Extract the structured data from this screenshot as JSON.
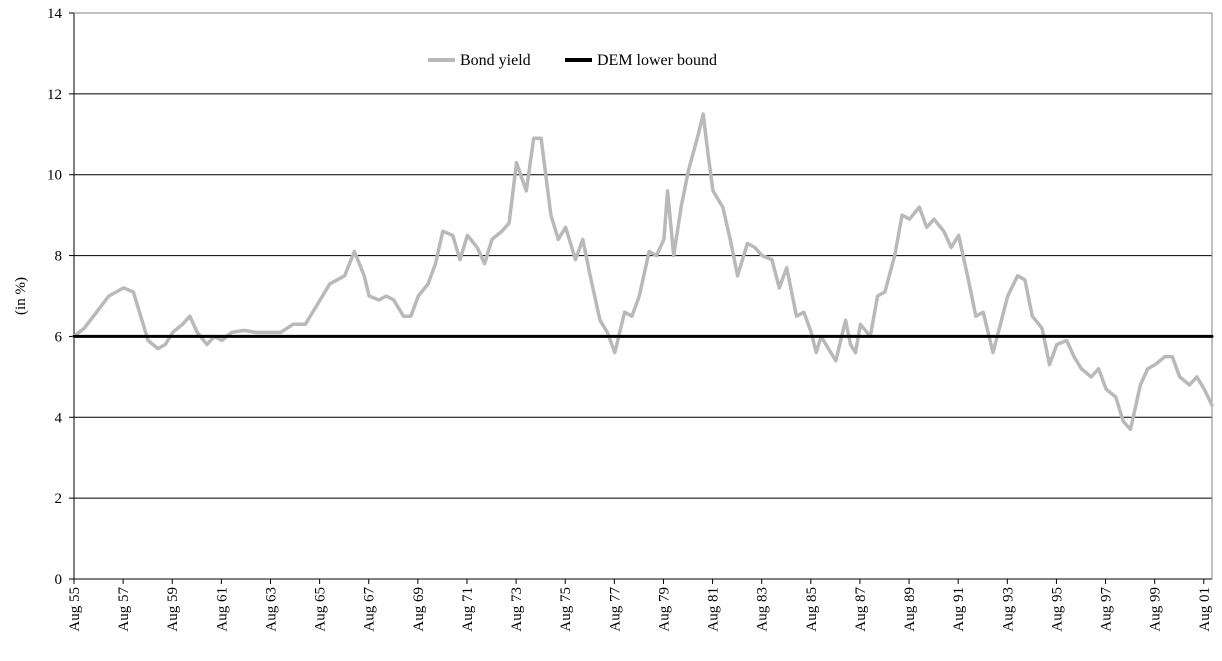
{
  "chart_data": {
    "type": "line",
    "ylabel": "(in %)",
    "xlabel": "",
    "ylim": [
      0,
      14
    ],
    "y_ticks": [
      "0",
      "2",
      "4",
      "6",
      "8",
      "10",
      "12",
      "14"
    ],
    "x_range_years": [
      1955.583,
      2001.917
    ],
    "x_tick_labels": [
      "Aug 55",
      "Aug 57",
      "Aug 59",
      "Aug 61",
      "Aug 63",
      "Aug 65",
      "Aug 67",
      "Aug 69",
      "Aug 71",
      "Aug 73",
      "Aug 75",
      "Aug 77",
      "Aug 79",
      "Aug 81",
      "Aug 83",
      "Aug 85",
      "Aug 87",
      "Aug 89",
      "Aug 91",
      "Aug 93",
      "Aug 95",
      "Aug 97",
      "Aug 99",
      "Aug 01"
    ],
    "grid": true,
    "legend_position": "top-center",
    "series": [
      {
        "name": "Bond yield",
        "color": "#b9b9b9",
        "x": [
          1955.58,
          1956.0,
          1956.5,
          1957.0,
          1957.3,
          1957.6,
          1958.0,
          1958.3,
          1958.6,
          1959.0,
          1959.3,
          1959.6,
          1960.0,
          1960.3,
          1960.6,
          1961.0,
          1961.3,
          1961.6,
          1962.0,
          1962.5,
          1963.0,
          1963.5,
          1964.0,
          1964.5,
          1965.0,
          1965.5,
          1966.0,
          1966.6,
          1967.0,
          1967.4,
          1967.6,
          1968.0,
          1968.3,
          1968.6,
          1969.0,
          1969.3,
          1969.6,
          1970.0,
          1970.3,
          1970.6,
          1971.0,
          1971.3,
          1971.6,
          1972.0,
          1972.3,
          1972.6,
          1973.0,
          1973.3,
          1973.6,
          1974.0,
          1974.3,
          1974.6,
          1975.0,
          1975.3,
          1975.6,
          1976.0,
          1976.3,
          1976.6,
          1977.0,
          1977.3,
          1977.6,
          1978.0,
          1978.3,
          1978.6,
          1979.0,
          1979.3,
          1979.6,
          1979.75,
          1980.0,
          1980.3,
          1980.6,
          1981.0,
          1981.2,
          1981.4,
          1981.6,
          1982.0,
          1982.3,
          1982.6,
          1983.0,
          1983.3,
          1983.6,
          1984.0,
          1984.3,
          1984.6,
          1985.0,
          1985.3,
          1985.6,
          1985.8,
          1986.0,
          1986.3,
          1986.6,
          1987.0,
          1987.2,
          1987.4,
          1987.6,
          1988.0,
          1988.3,
          1988.6,
          1989.0,
          1989.3,
          1989.6,
          1990.0,
          1990.3,
          1990.6,
          1991.0,
          1991.3,
          1991.6,
          1992.0,
          1992.3,
          1992.6,
          1993.0,
          1993.3,
          1993.6,
          1994.0,
          1994.3,
          1994.6,
          1995.0,
          1995.3,
          1995.6,
          1996.0,
          1996.3,
          1996.6,
          1997.0,
          1997.3,
          1997.6,
          1998.0,
          1998.3,
          1998.6,
          1999.0,
          1999.3,
          1999.6,
          2000.0,
          2000.3,
          2000.6,
          2001.0,
          2001.3,
          2001.6,
          2001.917
        ],
        "values": [
          6.0,
          6.2,
          6.6,
          7.0,
          7.1,
          7.2,
          7.1,
          6.5,
          5.9,
          5.7,
          5.8,
          6.1,
          6.3,
          6.5,
          6.1,
          5.8,
          6.0,
          5.9,
          6.1,
          6.15,
          6.1,
          6.1,
          6.1,
          6.3,
          6.3,
          6.8,
          7.3,
          7.5,
          8.1,
          7.5,
          7.0,
          6.9,
          7.0,
          6.9,
          6.5,
          6.5,
          7.0,
          7.3,
          7.8,
          8.6,
          8.5,
          7.9,
          8.5,
          8.2,
          7.8,
          8.4,
          8.6,
          8.8,
          10.3,
          9.6,
          10.9,
          10.9,
          9.0,
          8.4,
          8.7,
          7.9,
          8.4,
          7.5,
          6.4,
          6.1,
          5.6,
          6.6,
          6.5,
          7.0,
          8.1,
          8.0,
          8.4,
          9.6,
          8.0,
          9.2,
          10.1,
          11.0,
          11.5,
          10.5,
          9.6,
          9.2,
          8.4,
          7.5,
          8.3,
          8.2,
          8.0,
          7.9,
          7.2,
          7.7,
          6.5,
          6.6,
          6.1,
          5.6,
          6.0,
          5.7,
          5.4,
          6.4,
          5.8,
          5.6,
          6.3,
          6.0,
          7.0,
          7.1,
          8.0,
          9.0,
          8.9,
          9.2,
          8.7,
          8.9,
          8.6,
          8.2,
          8.5,
          7.4,
          6.5,
          6.6,
          5.6,
          6.3,
          7.0,
          7.5,
          7.4,
          6.5,
          6.2,
          5.3,
          5.8,
          5.9,
          5.5,
          5.2,
          5.0,
          5.2,
          4.7,
          4.5,
          3.9,
          3.7,
          4.8,
          5.2,
          5.3,
          5.5,
          5.5,
          5.0,
          4.8,
          5.0,
          4.7,
          4.3
        ]
      },
      {
        "name": "DEM lower bound",
        "color": "#000000",
        "x": [
          1955.583,
          2001.917
        ],
        "values": [
          6,
          6
        ]
      }
    ]
  }
}
